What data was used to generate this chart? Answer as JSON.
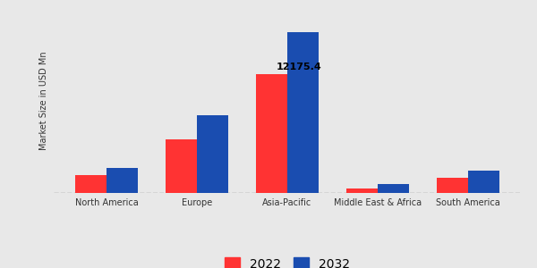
{
  "categories": [
    "North America",
    "Europe",
    "Asia-Pacific",
    "Middle East & Africa",
    "South America"
  ],
  "values_2022": [
    1800,
    5500,
    12175.4,
    500,
    1600
  ],
  "values_2032": [
    2600,
    8000,
    16500,
    950,
    2300
  ],
  "annotation_value": "12175.4",
  "annotation_region_idx": 2,
  "color_2022": "#ff3333",
  "color_2032": "#1a4db0",
  "ylabel": "Market Size in USD Mn",
  "background_color": "#e8e8e8",
  "legend_2022": "2022",
  "legend_2032": "2032",
  "bar_width": 0.35,
  "ylim": [
    0,
    19000
  ],
  "dashed_line_y": 0
}
